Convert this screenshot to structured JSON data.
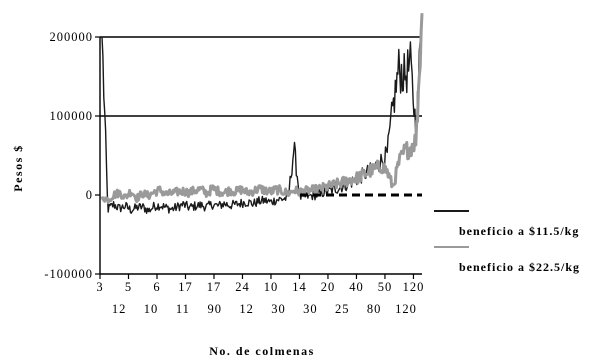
{
  "chart_data": {
    "type": "line",
    "title": "",
    "xlabel": "No. de colmenas",
    "ylabel": "Pesos $",
    "ylim": [
      -100000,
      200000
    ],
    "yticks": [
      -100000,
      0,
      100000,
      200000
    ],
    "ytick_labels": [
      "-100000",
      "0",
      "100000",
      "200000"
    ],
    "grid_y": [
      100000,
      200000
    ],
    "reference_line": {
      "y": 0,
      "style": "dashed"
    },
    "x_tick_labels_row1": [
      "3",
      "5",
      "6",
      "17",
      "17",
      "24",
      "10",
      "14",
      "20",
      "40",
      "50",
      "120"
    ],
    "x_tick_labels_row2": [
      "12",
      "10",
      "11",
      "90",
      "12",
      "30",
      "30",
      "25",
      "80",
      "120"
    ],
    "legend_position": "right",
    "series": [
      {
        "name": "beneficio a $11.5/kg",
        "color": "#1a1a1a",
        "values": [
          200000,
          -18000,
          -12000,
          -17000,
          -14000,
          -19000,
          -16000,
          -15000,
          -20000,
          -14000,
          -13000,
          -16000,
          -18000,
          -15000,
          -12000,
          -16000,
          -14000,
          -13000,
          -15000,
          -12000,
          -14000,
          -11000,
          -13000,
          -12000,
          -10000,
          -9000,
          -11000,
          -8000,
          -7000,
          -9000,
          -6000,
          -5000,
          -4000,
          60000,
          -3000,
          -2000,
          -1000,
          0,
          3000,
          5000,
          7000,
          10000,
          13000,
          17000,
          21000,
          26000,
          30000,
          36000,
          43000,
          50000,
          110000,
          160000,
          150000,
          165000,
          80000,
          230000
        ],
        "noise": 6000
      },
      {
        "name": "beneficio a $22.5/kg",
        "color": "#9a9a9a",
        "values": [
          -2000,
          -6000,
          0,
          3000,
          -3000,
          5000,
          -4000,
          2000,
          -1000,
          4000,
          6000,
          1000,
          2000,
          4000,
          5000,
          3000,
          6000,
          7000,
          2000,
          8000,
          5000,
          3000,
          6000,
          4000,
          7000,
          3000,
          5000,
          8000,
          6000,
          4000,
          7000,
          5000,
          2000,
          6000,
          4000,
          5000,
          6000,
          7000,
          9000,
          11000,
          13000,
          15000,
          18000,
          20000,
          22000,
          26000,
          30000,
          33000,
          37000,
          30000,
          10000,
          40000,
          55000,
          60000,
          70000,
          230000
        ],
        "noise": 5000
      }
    ]
  }
}
